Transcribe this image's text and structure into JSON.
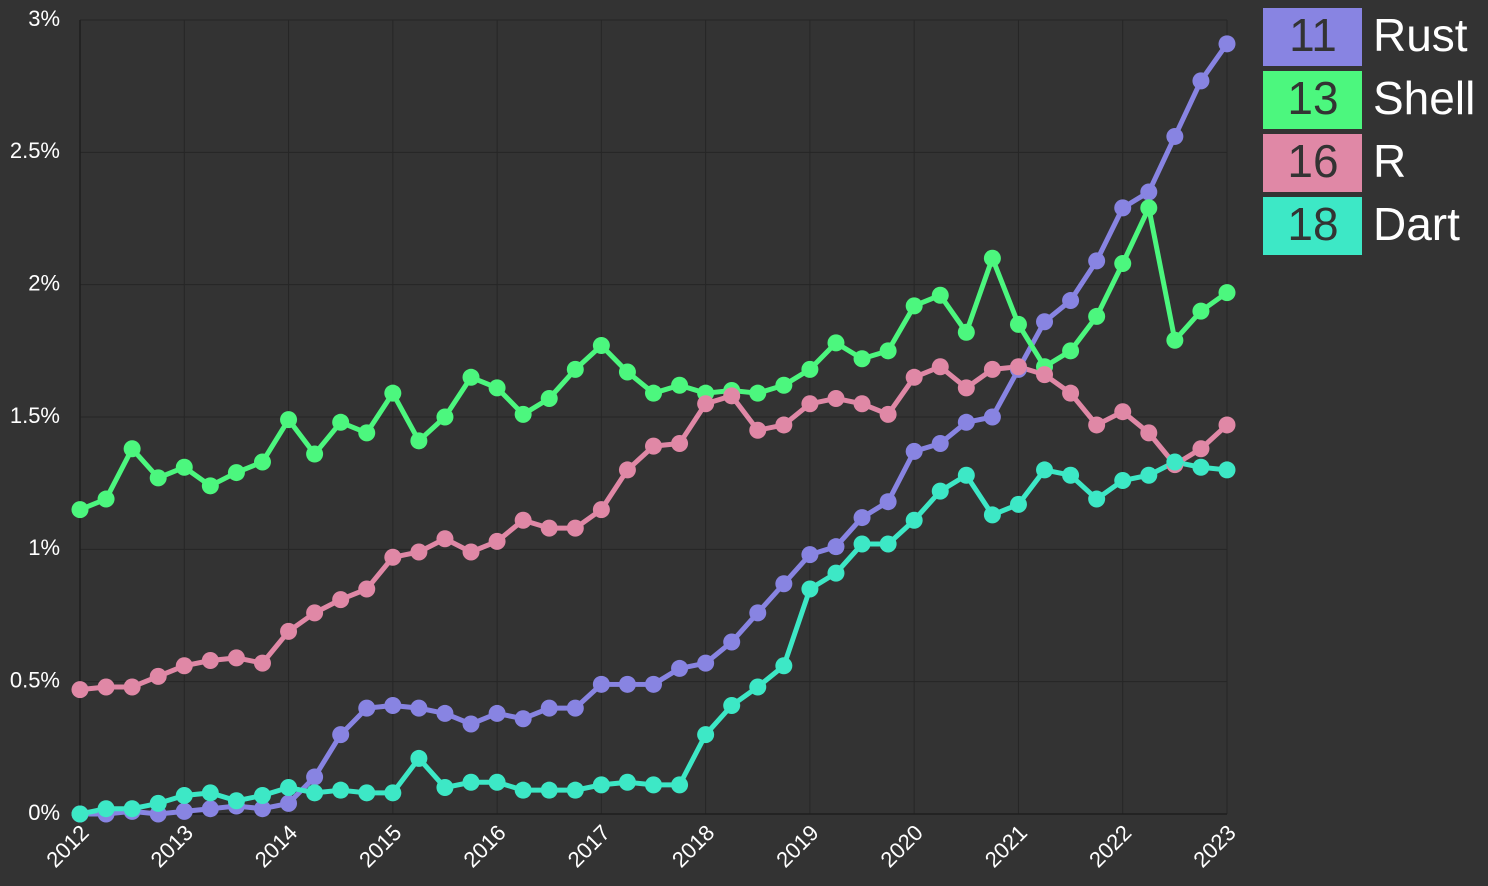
{
  "chart_data": {
    "type": "line",
    "x": [
      2012,
      2012.25,
      2012.5,
      2012.75,
      2013,
      2013.25,
      2013.5,
      2013.75,
      2014,
      2014.25,
      2014.5,
      2014.75,
      2015,
      2015.25,
      2015.5,
      2015.75,
      2016,
      2016.25,
      2016.5,
      2016.75,
      2017,
      2017.25,
      2017.5,
      2017.75,
      2018,
      2018.25,
      2018.5,
      2018.75,
      2019,
      2019.25,
      2019.5,
      2019.75,
      2020,
      2020.25,
      2020.5,
      2020.75,
      2021,
      2021.25,
      2021.5,
      2021.75,
      2022,
      2022.25,
      2022.5,
      2022.75,
      2023
    ],
    "series": [
      {
        "name": "Rust",
        "rank": "11",
        "color": "#8884e2",
        "values": [
          0,
          0,
          0.01,
          0,
          0.01,
          0.02,
          0.03,
          0.02,
          0.04,
          0.14,
          0.3,
          0.4,
          0.41,
          0.4,
          0.38,
          0.34,
          0.38,
          0.36,
          0.4,
          0.4,
          0.49,
          0.49,
          0.49,
          0.55,
          0.57,
          0.65,
          0.76,
          0.87,
          0.98,
          1.01,
          1.12,
          1.18,
          1.37,
          1.4,
          1.48,
          1.5,
          1.68,
          1.86,
          1.94,
          2.09,
          2.29,
          2.35,
          2.56,
          2.77,
          2.91
        ]
      },
      {
        "name": "Shell",
        "rank": "13",
        "color": "#4cf77e",
        "values": [
          1.15,
          1.19,
          1.38,
          1.27,
          1.31,
          1.24,
          1.29,
          1.33,
          1.49,
          1.36,
          1.48,
          1.44,
          1.59,
          1.41,
          1.5,
          1.65,
          1.61,
          1.51,
          1.57,
          1.68,
          1.77,
          1.67,
          1.59,
          1.62,
          1.59,
          1.6,
          1.59,
          1.62,
          1.68,
          1.78,
          1.72,
          1.75,
          1.92,
          1.96,
          1.82,
          2.1,
          1.85,
          1.69,
          1.75,
          1.88,
          2.08,
          2.29,
          1.79,
          1.9,
          1.97
        ]
      },
      {
        "name": "R",
        "rank": "16",
        "color": "#e088a6",
        "values": [
          0.47,
          0.48,
          0.48,
          0.52,
          0.56,
          0.58,
          0.59,
          0.57,
          0.69,
          0.76,
          0.81,
          0.85,
          0.97,
          0.99,
          1.04,
          0.99,
          1.03,
          1.11,
          1.08,
          1.08,
          1.15,
          1.3,
          1.39,
          1.4,
          1.55,
          1.58,
          1.45,
          1.47,
          1.55,
          1.57,
          1.55,
          1.51,
          1.65,
          1.69,
          1.61,
          1.68,
          1.69,
          1.66,
          1.59,
          1.47,
          1.52,
          1.44,
          1.32,
          1.38,
          1.47
        ]
      },
      {
        "name": "Dart",
        "rank": "18",
        "color": "#3de8c6",
        "values": [
          0,
          0.02,
          0.02,
          0.04,
          0.07,
          0.08,
          0.05,
          0.07,
          0.1,
          0.08,
          0.09,
          0.08,
          0.08,
          0.21,
          0.1,
          0.12,
          0.12,
          0.09,
          0.09,
          0.09,
          0.11,
          0.12,
          0.11,
          0.11,
          0.3,
          0.41,
          0.48,
          0.56,
          0.85,
          0.91,
          1.02,
          1.02,
          1.11,
          1.22,
          1.28,
          1.13,
          1.17,
          1.3,
          1.28,
          1.19,
          1.26,
          1.28,
          1.33,
          1.31,
          1.3
        ]
      }
    ],
    "xlim": [
      2012,
      2023
    ],
    "xticks": [
      2012,
      2013,
      2014,
      2015,
      2016,
      2017,
      2018,
      2019,
      2020,
      2021,
      2022,
      2023
    ],
    "ylim": [
      0,
      3
    ],
    "yticks": [
      {
        "value": 0,
        "label": "0%"
      },
      {
        "value": 0.5,
        "label": "0.5%"
      },
      {
        "value": 1,
        "label": "1%"
      },
      {
        "value": 1.5,
        "label": "1.5%"
      },
      {
        "value": 2,
        "label": "2%"
      },
      {
        "value": 2.5,
        "label": "2.5%"
      },
      {
        "value": 3,
        "label": "3%"
      }
    ],
    "grid": true,
    "legend": "top-right"
  }
}
